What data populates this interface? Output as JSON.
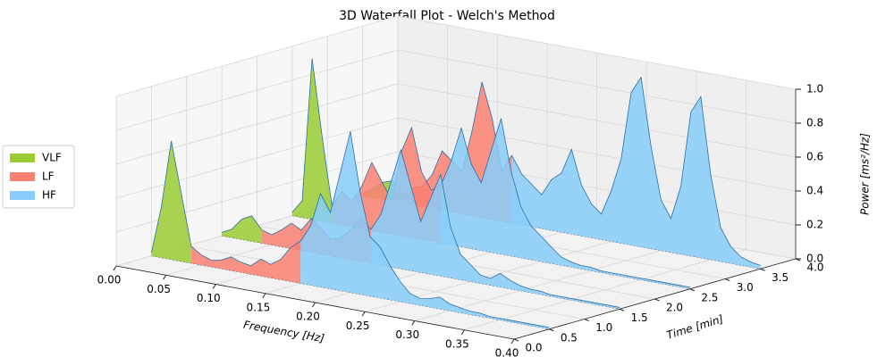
{
  "chart_data": {
    "type": "waterfall3d",
    "title": "3D Waterfall Plot - Welch's Method",
    "xlabel": "Frequency [Hz]",
    "ylabel": "Time [min]",
    "zlabel": "Power [ms²/Hz]",
    "xlim": [
      0,
      0.4
    ],
    "ylim": [
      0,
      4
    ],
    "zlim": [
      0,
      1
    ],
    "xticks": [
      {
        "value": 0,
        "label": "0.00"
      },
      0.05,
      {
        "value": 0.1,
        "label": "0.10"
      },
      0.15,
      {
        "value": 0.2,
        "label": "0.20"
      },
      0.25,
      {
        "value": 0.3,
        "label": "0.30"
      },
      0.35,
      {
        "value": 0.4,
        "label": "0.40"
      }
    ],
    "yticks": [
      {
        "value": 0,
        "label": "0.0"
      },
      0.5,
      {
        "value": 1,
        "label": "1.0"
      },
      1.5,
      {
        "value": 2,
        "label": "2.0"
      },
      2.5,
      {
        "value": 3,
        "label": "3.0"
      },
      3.5,
      {
        "value": 4,
        "label": "4.0"
      }
    ],
    "zticks": [
      {
        "value": 0,
        "label": "0.0"
      },
      0.2,
      0.4,
      0.6,
      0.8,
      {
        "value": 1,
        "label": "1.0"
      }
    ],
    "grid": true,
    "legend": "left",
    "times": [
      0.5,
      1.5,
      2.5,
      3.5
    ],
    "series": [
      {
        "name": "VLF",
        "color": "#9acd32",
        "x": [
          0,
          0.01,
          0.02,
          0.03,
          0.04
        ],
        "values": [
          [
            0.02,
            0.3,
            0.7,
            0.4,
            0.1
          ],
          [
            0.02,
            0.05,
            0.12,
            0.15,
            0.08
          ],
          [
            0.02,
            0.1,
            0.95,
            0.5,
            0.1
          ],
          [
            0.01,
            0.05,
            0.1,
            0.12,
            0.08
          ]
        ]
      },
      {
        "name": "LF",
        "color": "#fa8072",
        "x": [
          0.04,
          0.05,
          0.06,
          0.07,
          0.08,
          0.09,
          0.1,
          0.11,
          0.12,
          0.13,
          0.14,
          0.15
        ],
        "values": [
          [
            0.1,
            0.06,
            0.04,
            0.05,
            0.08,
            0.06,
            0.05,
            0.1,
            0.08,
            0.12,
            0.2,
            0.25
          ],
          [
            0.08,
            0.06,
            0.1,
            0.15,
            0.12,
            0.2,
            0.15,
            0.1,
            0.12,
            0.18,
            0.25,
            0.2
          ],
          [
            0.1,
            0.2,
            0.15,
            0.25,
            0.4,
            0.3,
            0.2,
            0.5,
            0.65,
            0.4,
            0.3,
            0.35
          ],
          [
            0.08,
            0.1,
            0.12,
            0.2,
            0.35,
            0.3,
            0.25,
            0.5,
            0.8,
            0.6,
            0.3,
            0.4
          ]
        ]
      },
      {
        "name": "HF",
        "color": "#87cefa",
        "x": [
          0.15,
          0.16,
          0.17,
          0.18,
          0.19,
          0.2,
          0.21,
          0.22,
          0.23,
          0.24,
          0.25,
          0.26,
          0.27,
          0.28,
          0.29,
          0.3,
          0.31,
          0.32,
          0.33,
          0.34,
          0.35,
          0.36,
          0.37,
          0.38,
          0.39,
          0.4
        ],
        "values": [
          [
            0.25,
            0.35,
            0.55,
            0.45,
            0.7,
            0.95,
            0.6,
            0.35,
            0.3,
            0.2,
            0.12,
            0.06,
            0.04,
            0.05,
            0.07,
            0.04,
            0.03,
            0.02,
            0.02,
            0.01,
            0.01,
            0.01,
            0.01,
            0.01,
            0.01,
            0.01
          ],
          [
            0.2,
            0.3,
            0.5,
            0.7,
            0.5,
            0.3,
            0.45,
            0.6,
            0.3,
            0.15,
            0.1,
            0.05,
            0.04,
            0.08,
            0.05,
            0.03,
            0.02,
            0.02,
            0.01,
            0.01,
            0.01,
            0.01,
            0.01,
            0.01,
            0.01,
            0.01
          ],
          [
            0.35,
            0.5,
            0.7,
            0.5,
            0.4,
            0.6,
            0.8,
            0.5,
            0.3,
            0.2,
            0.15,
            0.1,
            0.05,
            0.03,
            0.02,
            0.02,
            0.01,
            0.01,
            0.01,
            0.01,
            0.01,
            0.01,
            0.01,
            0.01,
            0.01,
            0.01
          ],
          [
            0.4,
            0.3,
            0.25,
            0.2,
            0.3,
            0.35,
            0.5,
            0.3,
            0.2,
            0.15,
            0.3,
            0.5,
            0.9,
            1.0,
            0.6,
            0.3,
            0.2,
            0.4,
            0.85,
            0.95,
            0.5,
            0.2,
            0.1,
            0.05,
            0.03,
            0.02
          ]
        ]
      }
    ]
  }
}
